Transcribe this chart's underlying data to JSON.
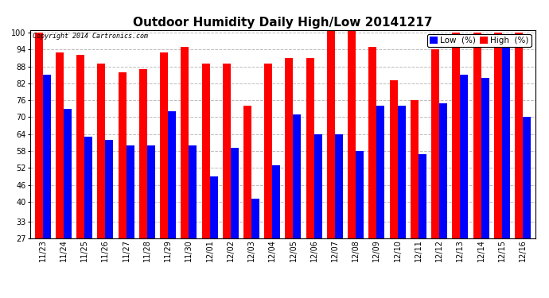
{
  "title": "Outdoor Humidity Daily High/Low 20141217",
  "copyright": "Copyright 2014 Cartronics.com",
  "legend_low": "Low  (%)",
  "legend_high": "High  (%)",
  "low_color": "#0000ff",
  "high_color": "#ff0000",
  "background_color": "#ffffff",
  "dates": [
    "11/23",
    "11/24",
    "11/25",
    "11/26",
    "11/27",
    "11/28",
    "11/29",
    "11/30",
    "12/01",
    "12/02",
    "12/03",
    "12/04",
    "12/05",
    "12/06",
    "12/07",
    "12/08",
    "12/09",
    "12/10",
    "12/11",
    "12/12",
    "12/13",
    "12/14",
    "12/15",
    "12/16"
  ],
  "high_values": [
    100,
    93,
    92,
    89,
    86,
    87,
    93,
    95,
    89,
    89,
    74,
    89,
    91,
    91,
    101,
    101,
    95,
    83,
    76,
    94,
    100,
    100,
    100,
    100
  ],
  "low_values": [
    85,
    73,
    63,
    62,
    60,
    60,
    72,
    60,
    49,
    59,
    41,
    53,
    71,
    64,
    64,
    58,
    74,
    74,
    57,
    75,
    85,
    84,
    97,
    70
  ],
  "ylim": [
    27,
    100
  ],
  "yticks": [
    27,
    33,
    40,
    46,
    52,
    58,
    64,
    70,
    76,
    82,
    88,
    94,
    100
  ],
  "grid_color": "#bbbbbb",
  "bar_width": 0.38,
  "title_fontsize": 11,
  "tick_fontsize": 7,
  "legend_fontsize": 7.5
}
